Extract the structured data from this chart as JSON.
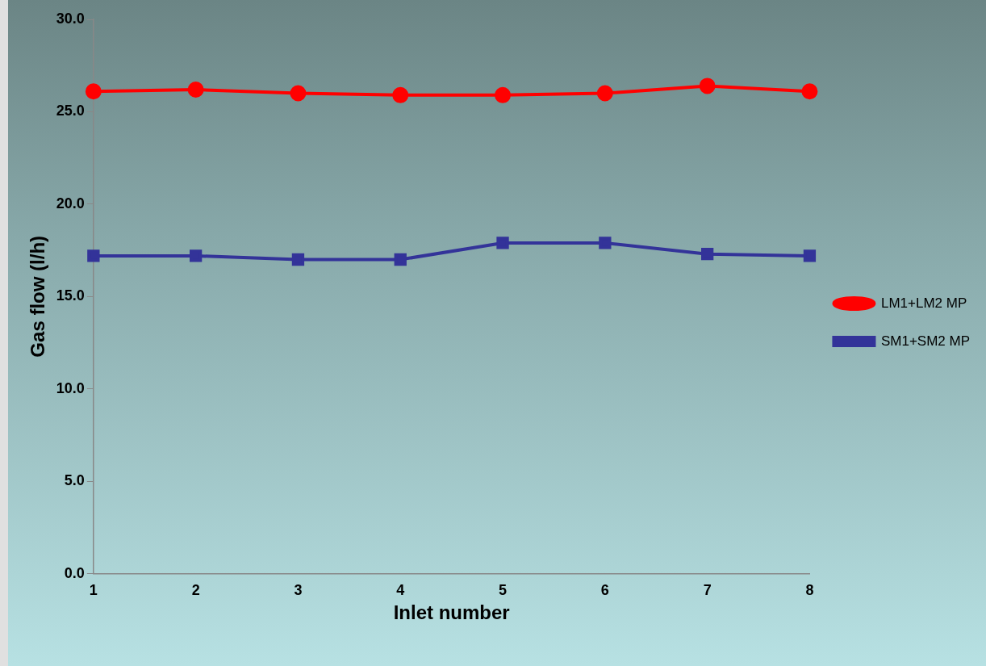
{
  "chart_data": {
    "type": "line",
    "xlabel": "Inlet number",
    "ylabel": "Gas flow (l/h)",
    "categories": [
      "1",
      "2",
      "3",
      "4",
      "5",
      "6",
      "7",
      "8"
    ],
    "series": [
      {
        "name": "LM1+LM2 MP",
        "color": "#ff0000",
        "marker": "circle",
        "values": [
          26.1,
          26.2,
          26.0,
          25.9,
          25.9,
          26.0,
          26.4,
          26.1
        ]
      },
      {
        "name": "SM1+SM2 MP",
        "color": "#333399",
        "marker": "square",
        "values": [
          17.2,
          17.2,
          17.0,
          17.0,
          17.9,
          17.9,
          17.3,
          17.2
        ]
      }
    ],
    "ylim": [
      0,
      30
    ],
    "yticks": [
      {
        "value": 0,
        "label": "0.0"
      },
      {
        "value": 5,
        "label": "5.0"
      },
      {
        "value": 10,
        "label": "10.0"
      },
      {
        "value": 15,
        "label": "15.0"
      },
      {
        "value": 20,
        "label": "20.0"
      },
      {
        "value": 25,
        "label": "25.0"
      },
      {
        "value": 30,
        "label": "30.0"
      }
    ],
    "grid": false,
    "legend": "right",
    "line_style": "solid"
  }
}
